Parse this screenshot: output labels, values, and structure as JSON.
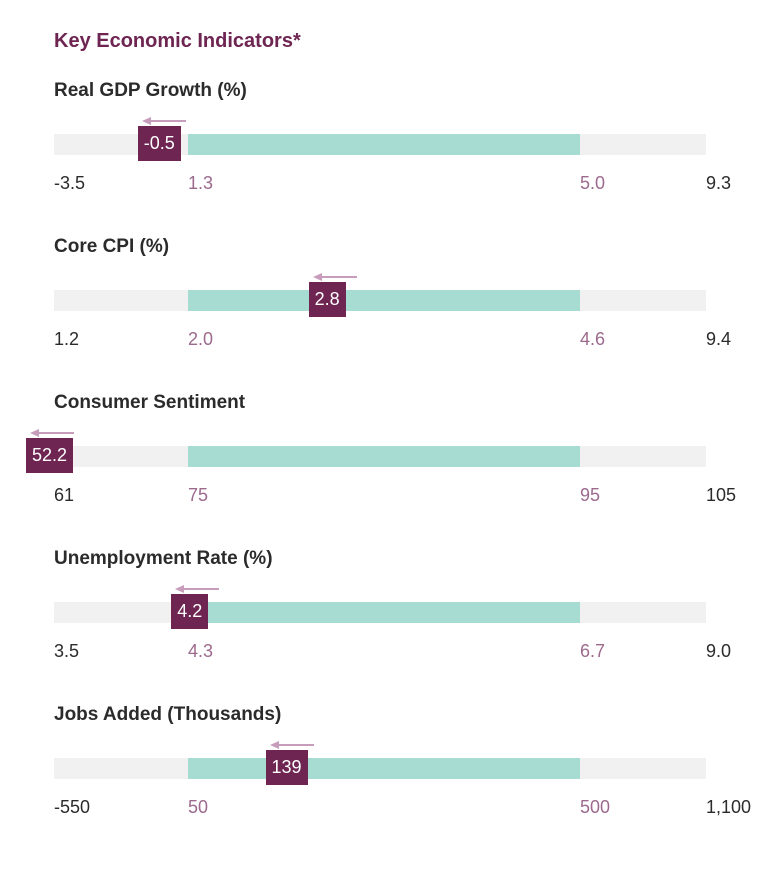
{
  "title": "Key Economic Indicators*",
  "colors": {
    "marker": "#6e2552",
    "band": "#a6dcd1",
    "track": "#f1f1f2",
    "arrow": "#c79dbb",
    "range_labels": "#9c6a8d"
  },
  "chart_data": {
    "type": "range-bullet",
    "title": "Key Economic Indicators*",
    "indicators": [
      {
        "label": "Real GDP Growth (%)",
        "min": -3.5,
        "max": 9.3,
        "range_low": 1.3,
        "range_high": 5.0,
        "current": -0.5,
        "direction": "left",
        "tick_labels": {
          "min": "-3.5",
          "low": "1.3",
          "high": "5.0",
          "max": "9.3"
        },
        "current_label": "-0.5"
      },
      {
        "label": "Core CPI (%)",
        "min": 1.2,
        "max": 9.4,
        "range_low": 2.0,
        "range_high": 4.6,
        "current": 2.8,
        "direction": "left",
        "tick_labels": {
          "min": "1.2",
          "low": "2.0",
          "high": "4.6",
          "max": "9.4"
        },
        "current_label": "2.8"
      },
      {
        "label": "Consumer Sentiment",
        "min": 61,
        "max": 105,
        "range_low": 75,
        "range_high": 95,
        "current": 52.2,
        "direction": "left",
        "tick_labels": {
          "min": "61",
          "low": "75",
          "high": "95",
          "max": "105"
        },
        "current_label": "52.2"
      },
      {
        "label": "Unemployment Rate (%)",
        "min": 3.5,
        "max": 9.0,
        "range_low": 4.3,
        "range_high": 6.7,
        "current": 4.2,
        "direction": "left",
        "tick_labels": {
          "min": "3.5",
          "low": "4.3",
          "high": "6.7",
          "max": "9.0"
        },
        "current_label": "4.2"
      },
      {
        "label": "Jobs Added (Thousands)",
        "min": -550,
        "max": 1100,
        "range_low": 50,
        "range_high": 500,
        "current": 139,
        "direction": "left",
        "tick_labels": {
          "min": "-550",
          "low": "50",
          "high": "500",
          "max": "1,100"
        },
        "current_label": "139"
      }
    ]
  }
}
